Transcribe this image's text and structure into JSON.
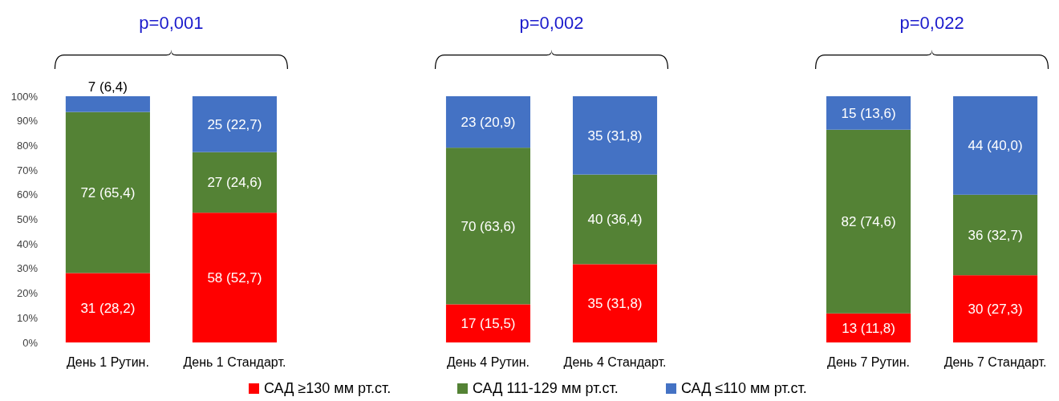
{
  "chart_data": {
    "type": "bar",
    "stacked": true,
    "categories": [
      "День 1 Рутин.",
      "День 1 Стандарт.",
      null,
      "День 4 Рутин.",
      "День 4 Стандарт.",
      null,
      "День 7 Рутин.",
      "День 7 Стандарт."
    ],
    "series": [
      {
        "name": "САД ≥130 мм рт.ст.",
        "color": "#ff0000",
        "values": [
          28.2,
          52.7,
          null,
          15.5,
          31.8,
          null,
          11.8,
          27.3
        ],
        "value_labels": [
          "31 (28,2)",
          "58 (52,7)",
          null,
          "17 (15,5)",
          "35 (31,8)",
          null,
          "13 (11,8)",
          "30 (27,3)"
        ]
      },
      {
        "name": "САД 111-129 мм рт.ст.",
        "color": "#548235",
        "values": [
          65.4,
          24.6,
          null,
          63.6,
          36.4,
          null,
          74.6,
          32.7
        ],
        "value_labels": [
          "72 (65,4)",
          "27 (24,6)",
          null,
          "70 (63,6)",
          "40 (36,4)",
          null,
          "82 (74,6)",
          "36 (32,7)"
        ]
      },
      {
        "name": "САД ≤110 мм рт.ст.",
        "color": "#4472c4",
        "values": [
          6.4,
          22.7,
          null,
          20.9,
          31.8,
          null,
          13.6,
          40.0
        ],
        "value_labels": [
          "7 (6,4)",
          "25 (22,7)",
          null,
          "23 (20,9)",
          "35 (31,8)",
          null,
          "15 (13,6)",
          "44 (40,0)"
        ]
      }
    ],
    "ylim": [
      0,
      100
    ],
    "yticks": [
      {
        "value": 0,
        "label": "0%"
      },
      {
        "value": 10,
        "label": "10%"
      },
      {
        "value": 20,
        "label": "20%"
      },
      {
        "value": 30,
        "label": "30%"
      },
      {
        "value": 40,
        "label": "40%"
      },
      {
        "value": 50,
        "label": "50%"
      },
      {
        "value": 60,
        "label": "60%"
      },
      {
        "value": 70,
        "label": "70%"
      },
      {
        "value": 80,
        "label": "80%"
      },
      {
        "value": 90,
        "label": "90%"
      },
      {
        "value": 100,
        "label": "100%"
      }
    ],
    "annotations": [
      "p=0,001",
      "p=0,002",
      "p=0,022"
    ],
    "grid": false,
    "legend": "bottom"
  }
}
